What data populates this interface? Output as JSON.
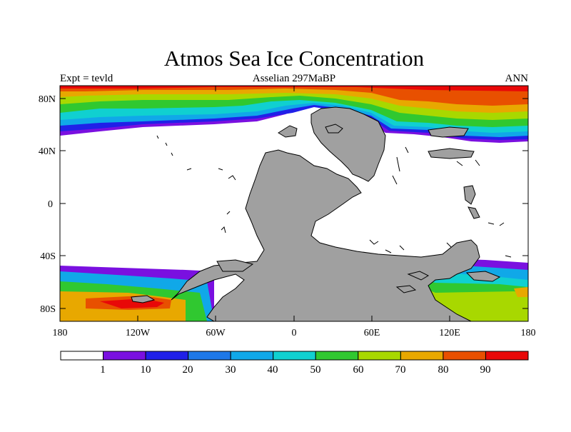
{
  "title": "Atmos Sea Ice Concentration",
  "left_label": "Expt = tevld",
  "center_label": "Asselian 297MaBP",
  "right_label": "ANN",
  "y_tick_labels": [
    "80N",
    "40N",
    "0",
    "40S",
    "80S"
  ],
  "x_tick_labels": [
    "180",
    "120W",
    "60W",
    "0",
    "60E",
    "120E",
    "180"
  ],
  "colorbar": {
    "labels": [
      "1",
      "10",
      "20",
      "30",
      "40",
      "50",
      "60",
      "70",
      "80",
      "90"
    ],
    "colors": [
      "#ffffff",
      "#7a10e0",
      "#2020e8",
      "#1e78e8",
      "#10a8e8",
      "#10d0d0",
      "#30c830",
      "#a8d800",
      "#e8a800",
      "#e85000",
      "#e80808"
    ]
  },
  "colors": {
    "land": "#a0a0a0",
    "ocean_ice_free": "#ffffff",
    "outline": "#000000"
  }
}
